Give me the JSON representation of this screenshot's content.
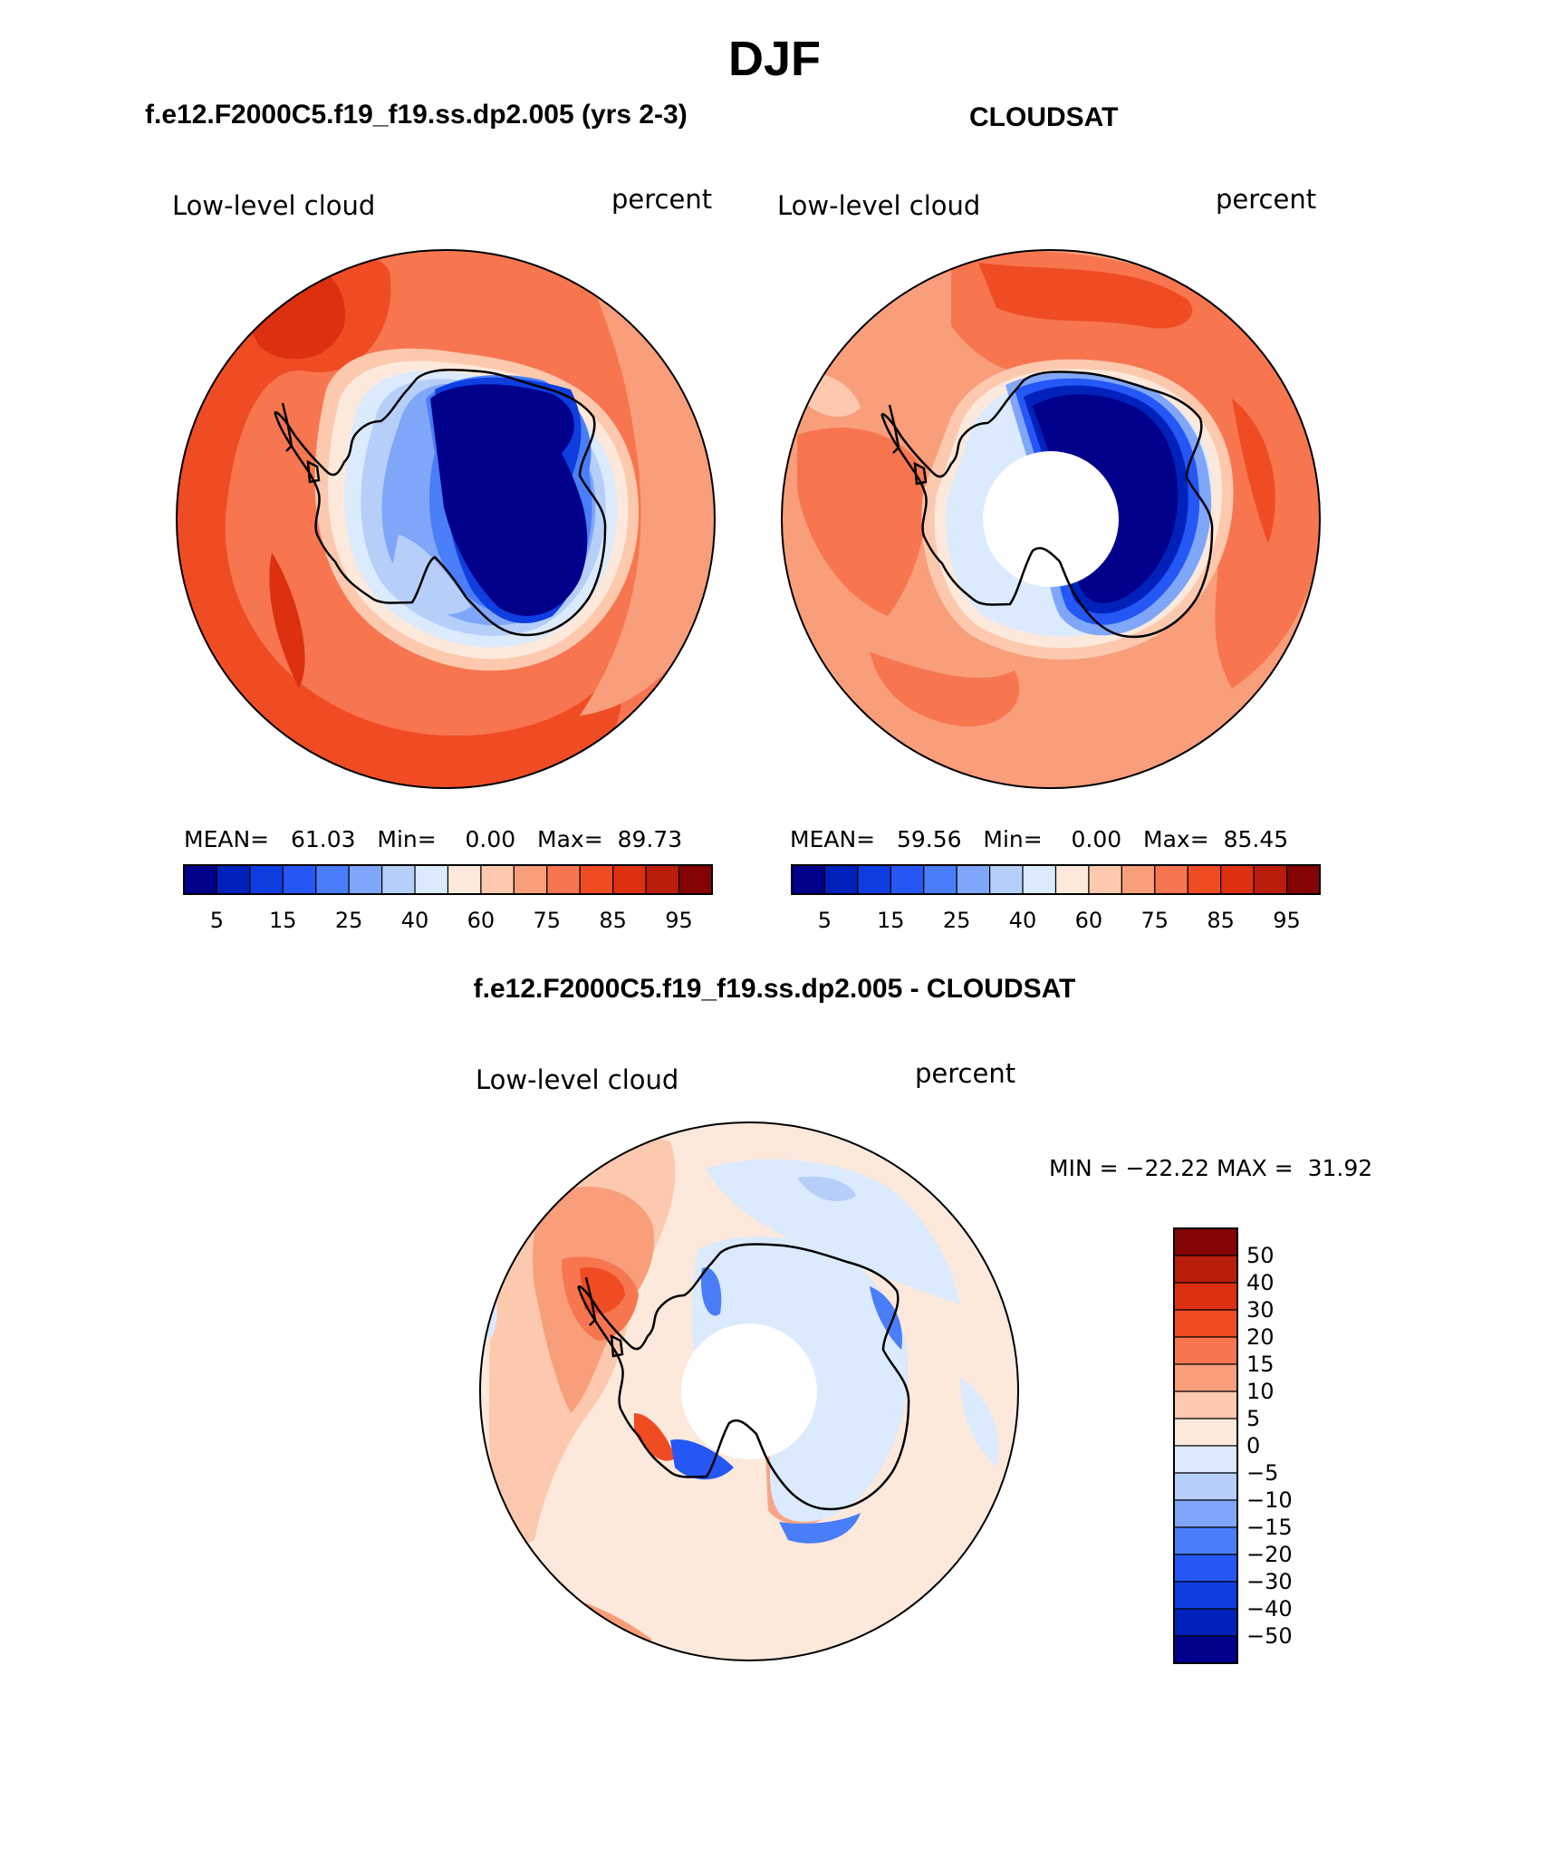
{
  "page": {
    "season_title": "DJF"
  },
  "panels": [
    {
      "case_title": "f.e12.F2000C5.f19_f19.ss.dp2.005 (yrs 2-3)",
      "variable": "Low-level cloud",
      "units": "percent",
      "stats": {
        "mean_label": "MEAN=",
        "mean_value": "61.03",
        "min_label": "Min=",
        "min_value": "0.00",
        "max_label": "Max=",
        "max_value": "89.73"
      }
    },
    {
      "case_title": "CLOUDSAT",
      "variable": "Low-level cloud",
      "units": "percent",
      "stats": {
        "mean_label": "MEAN=",
        "mean_value": "59.56",
        "min_label": "Min=",
        "min_value": "0.00",
        "max_label": "Max=",
        "max_value": "85.45"
      }
    }
  ],
  "abs_colorbar": {
    "colors": [
      "#00008b",
      "#0022bb",
      "#0e3ee0",
      "#2457f5",
      "#4a7df8",
      "#7fa6f8",
      "#b5cff9",
      "#dbeafd",
      "#fde9dc",
      "#fcc9ae",
      "#f99e7a",
      "#f77650",
      "#f04c24",
      "#dd3010",
      "#b81e0a",
      "#840303"
    ],
    "tick_labels": [
      "5",
      "15",
      "25",
      "40",
      "60",
      "75",
      "85",
      "95"
    ]
  },
  "diff_panel": {
    "title": "f.e12.F2000C5.f19_f19.ss.dp2.005 - CLOUDSAT",
    "variable": "Low-level cloud",
    "units": "percent",
    "min_label": "MIN =",
    "min_value": "−22.22",
    "max_label": "MAX =",
    "max_value": "31.92"
  },
  "diff_colorbar": {
    "colors_top_to_bottom": [
      "#840303",
      "#b81e0a",
      "#dd3010",
      "#f04c24",
      "#f77650",
      "#f99e7a",
      "#fcc9ae",
      "#fde9dc",
      "#dbeafd",
      "#b5cff9",
      "#7fa6f8",
      "#4a7df8",
      "#2457f5",
      "#0e3ee0",
      "#0022bb",
      "#00008b"
    ],
    "labels_top_to_bottom": [
      "50",
      "40",
      "30",
      "20",
      "15",
      "10",
      "5",
      "0",
      "−5",
      "−10",
      "−15",
      "−20",
      "−30",
      "−40",
      "−50"
    ]
  }
}
